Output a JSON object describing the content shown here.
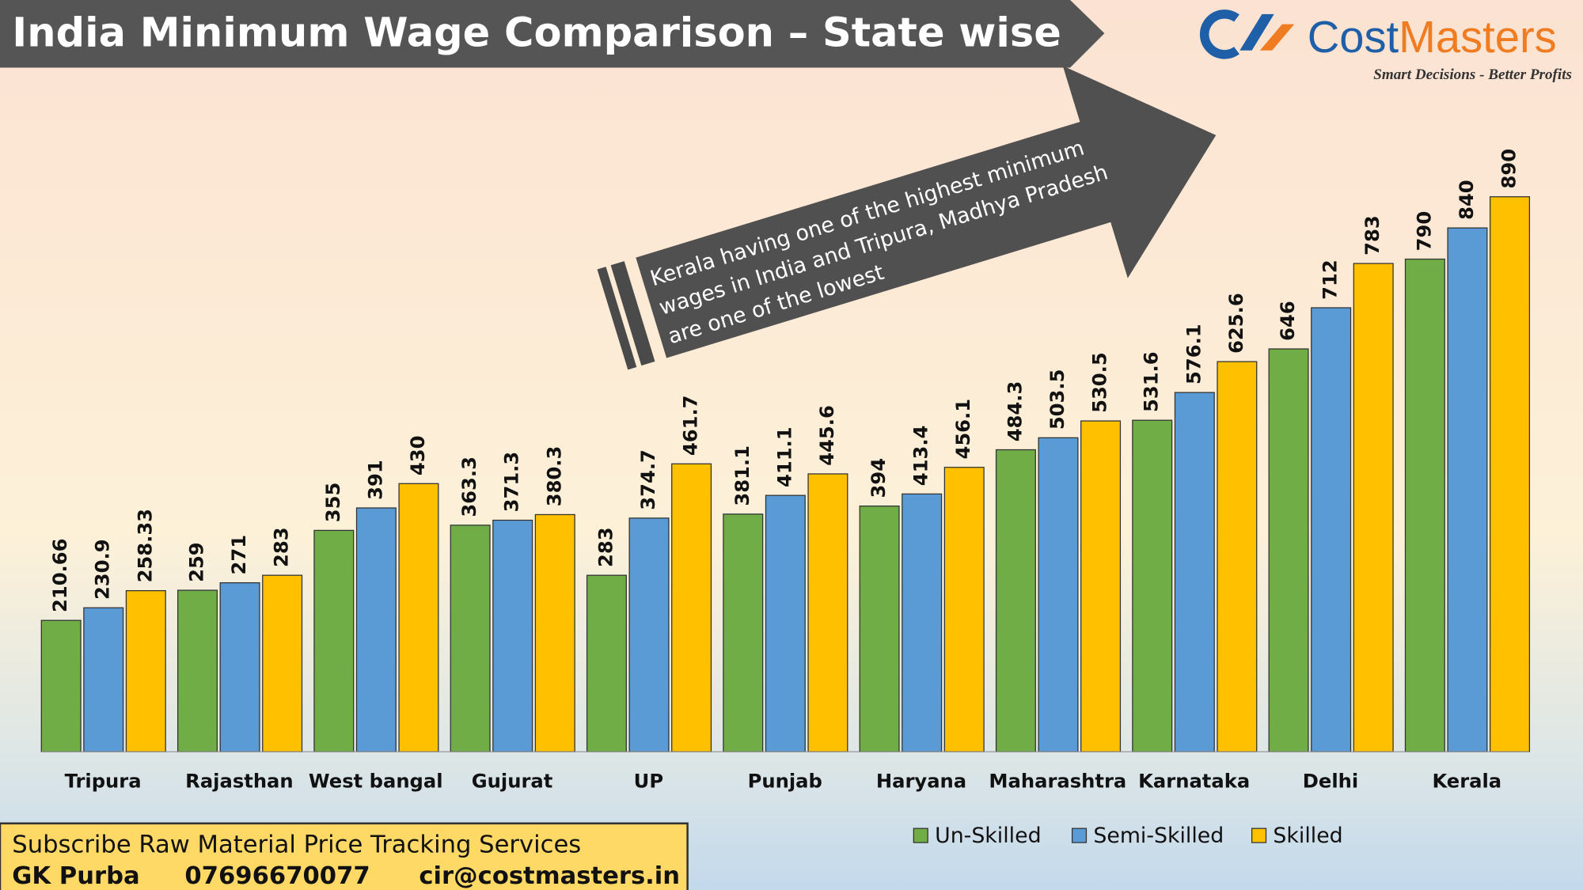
{
  "chart_data": {
    "type": "bar",
    "title": "India Minimum Wage Comparison – State wise",
    "logo_left": "Cost",
    "logo_right": "Masters",
    "tagline": "Smart Decisions - Better Profits",
    "annotation": [
      "Kerala having one of the highest minimum",
      "wages in India and Tripura, Madhya Pradesh",
      "are one of the lowest"
    ],
    "footer": {
      "line1": "Subscribe Raw Material Price Tracking Services",
      "name": "GK Purba",
      "phone": "07696670077",
      "email": "cir@costmasters.in"
    },
    "categories": [
      "Tripura",
      "Rajasthan",
      "West bangal",
      "Gujurat",
      "UP",
      "Punjab",
      "Haryana",
      "Maharashtra",
      "Karnataka",
      "Delhi",
      "Kerala"
    ],
    "series": [
      {
        "name": "Un-Skilled",
        "color": "#70ad47",
        "values": [
          210.66,
          259,
          355,
          363.3,
          283,
          381.1,
          394,
          484.3,
          531.6,
          646,
          790
        ]
      },
      {
        "name": "Semi-Skilled",
        "color": "#5b9bd5",
        "values": [
          230.9,
          271,
          391,
          371.3,
          374.7,
          411.1,
          413.4,
          503.5,
          576.1,
          712,
          840
        ]
      },
      {
        "name": "Skilled",
        "color": "#ffc000",
        "values": [
          258.33,
          283,
          430,
          380.3,
          461.7,
          445.6,
          456.1,
          530.5,
          625.6,
          783,
          890
        ]
      }
    ],
    "ylim": [
      0,
      1000
    ],
    "legend": "bottom-right"
  }
}
